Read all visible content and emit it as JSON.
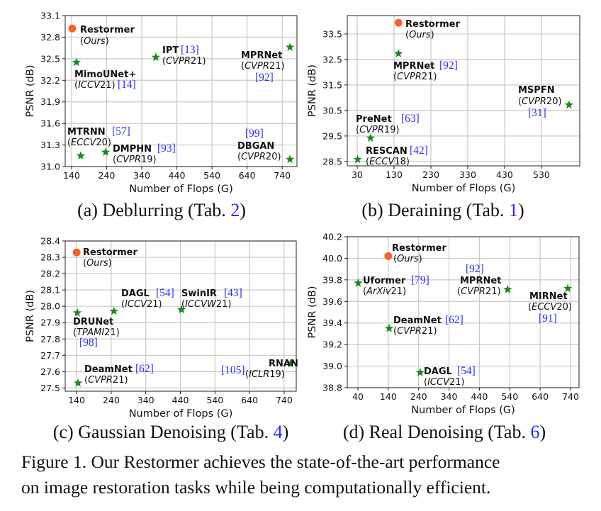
{
  "colors": {
    "restormer": "#f4622a",
    "others": "#1a8a1a",
    "ref": "#2b2bff",
    "ref_bracket": "#c06000",
    "grid": "#c8c8c8"
  },
  "chart_data": [
    {
      "type": "scatter",
      "caption": "(a) Deblurring (Tab. ",
      "caption_ref": "2",
      "caption_end": ")",
      "xlabel": "Number of Flops (G)",
      "ylabel": "PSNR (dB)",
      "grid": true,
      "xlim": [
        122,
        782
      ],
      "ylim": [
        31.0,
        33.1
      ],
      "xticks": [
        140,
        240,
        340,
        440,
        540,
        640,
        740
      ],
      "yticks": [
        "31.0",
        "31.3",
        "31.6",
        "31.9",
        "32.2",
        "32.5",
        "32.8",
        "33.1"
      ],
      "points": [
        {
          "name": "Restormer",
          "venue": "(Ours)",
          "ref": "",
          "x": 142,
          "y": 32.92,
          "marker": "circle"
        },
        {
          "name": "MimoUNet+",
          "venue": "(ICCV21)",
          "ref": "[14]",
          "x": 154,
          "y": 32.45,
          "marker": "star"
        },
        {
          "name": "IPT",
          "venue": "(CVPR21)",
          "ref": "[13]",
          "x": 380,
          "y": 32.52,
          "marker": "star"
        },
        {
          "name": "MPRNet",
          "venue": "(CVPR21)",
          "ref": "[92]",
          "x": 762,
          "y": 32.66,
          "marker": "star"
        },
        {
          "name": "MTRNN",
          "venue": "(ECCV20)",
          "ref": "[57]",
          "x": 166,
          "y": 31.15,
          "marker": "star"
        },
        {
          "name": "DMPHN",
          "venue": "(CVPR19)",
          "ref": "[93]",
          "x": 237,
          "y": 31.2,
          "marker": "star"
        },
        {
          "name": "DBGAN",
          "venue": "(CVPR20)",
          "ref": "[99]",
          "x": 762,
          "y": 31.1,
          "marker": "star"
        }
      ]
    },
    {
      "type": "scatter",
      "caption": "(b) Deraining (Tab. ",
      "caption_ref": "1",
      "caption_end": ")",
      "xlabel": "Number of Flops (G)",
      "ylabel": "PSNR (dB)",
      "grid": true,
      "xlim": [
        3,
        634
      ],
      "ylim": [
        28.33,
        34.22
      ],
      "xticks": [
        30,
        130,
        230,
        330,
        430,
        530
      ],
      "yticks": [
        "28.5",
        "29.5",
        "30.5",
        "31.5",
        "32.5",
        "33.5"
      ],
      "points": [
        {
          "name": "Restormer",
          "venue": "(Ours)",
          "ref": "",
          "x": 142,
          "y": 33.94,
          "marker": "circle"
        },
        {
          "name": "MPRNet",
          "venue": "(CVPR21)",
          "ref": "[92]",
          "x": 142,
          "y": 32.73,
          "marker": "star"
        },
        {
          "name": "PreNet",
          "venue": "(CVPR19)",
          "ref": "[63]",
          "x": 66,
          "y": 29.42,
          "marker": "star"
        },
        {
          "name": "RESCAN",
          "venue": "(ECCV18)",
          "ref": "[42]",
          "x": 31,
          "y": 28.58,
          "marker": "star"
        },
        {
          "name": "MSPFN",
          "venue": "(CVPR20)",
          "ref": "[31]",
          "x": 605,
          "y": 30.72,
          "marker": "star"
        }
      ]
    },
    {
      "type": "scatter",
      "caption": "(c) Gaussian Denoising (Tab. ",
      "caption_ref": "4",
      "caption_end": ")",
      "xlabel": "Number of Flops (G)",
      "ylabel": "PSNR (dB)",
      "grid": true,
      "xlim": [
        107,
        775
      ],
      "ylim": [
        27.48,
        28.4
      ],
      "xticks": [
        140,
        240,
        340,
        440,
        540,
        640,
        740
      ],
      "yticks": [
        "27.5",
        "27.6",
        "27.7",
        "27.8",
        "27.9",
        "28.0",
        "28.1",
        "28.2",
        "28.3",
        "28.4"
      ],
      "points": [
        {
          "name": "Restormer",
          "venue": "(Ours)",
          "ref": "",
          "x": 140,
          "y": 28.33,
          "marker": "circle"
        },
        {
          "name": "DRUNet",
          "venue": "(TPAMI21)",
          "ref": "[98]",
          "x": 142,
          "y": 27.96,
          "marker": "star"
        },
        {
          "name": "DAGL",
          "venue": "(ICCV21)",
          "ref": "[54]",
          "x": 248,
          "y": 27.97,
          "marker": "star"
        },
        {
          "name": "SwinIR",
          "venue": "(ICCVW21)",
          "ref": "[43]",
          "x": 443,
          "y": 27.98,
          "marker": "star"
        },
        {
          "name": "DeamNet",
          "venue": "(CVPR21)",
          "ref": "[62]",
          "x": 144,
          "y": 27.53,
          "marker": "star"
        },
        {
          "name": "RNAN",
          "venue": "(ICLR19)",
          "ref": "[105]",
          "x": 758,
          "y": 27.65,
          "marker": "star"
        }
      ]
    },
    {
      "type": "scatter",
      "caption": "(d) Real Denoising (Tab. ",
      "caption_ref": "6",
      "caption_end": ")",
      "xlabel": "Number of Flops (G)",
      "ylabel": "PSNR (dB)",
      "grid": true,
      "xlim": [
        5,
        768
      ],
      "ylim": [
        38.8,
        40.2
      ],
      "xticks": [
        40,
        140,
        240,
        340,
        440,
        540,
        640,
        740
      ],
      "yticks": [
        "38.8",
        "39.0",
        "39.2",
        "39.4",
        "39.6",
        "39.8",
        "40.0",
        "40.2"
      ],
      "points": [
        {
          "name": "Restormer",
          "venue": "(Ours)",
          "ref": "",
          "x": 140,
          "y": 40.02,
          "marker": "circle"
        },
        {
          "name": "Uformer",
          "venue": "(ArXiv21)",
          "ref": "[79]",
          "x": 41,
          "y": 39.77,
          "marker": "star"
        },
        {
          "name": "MPRNet",
          "venue": "(CVPR21)",
          "ref": "[92]",
          "x": 533,
          "y": 39.71,
          "marker": "star"
        },
        {
          "name": "MIRNet",
          "venue": "(ECCV20)",
          "ref": "[91]",
          "x": 731,
          "y": 39.72,
          "marker": "star"
        },
        {
          "name": "DeamNet",
          "venue": "(CVPR21)",
          "ref": "[62]",
          "x": 143,
          "y": 39.35,
          "marker": "star"
        },
        {
          "name": "DAGL",
          "venue": "(ICCV21)",
          "ref": "[54]",
          "x": 245,
          "y": 38.94,
          "marker": "star"
        }
      ]
    }
  ],
  "figure_caption": {
    "line1": "Figure 1. Our Restormer achieves the state-of-the-art performance",
    "line2": "on image restoration tasks while being computationally efficient."
  }
}
